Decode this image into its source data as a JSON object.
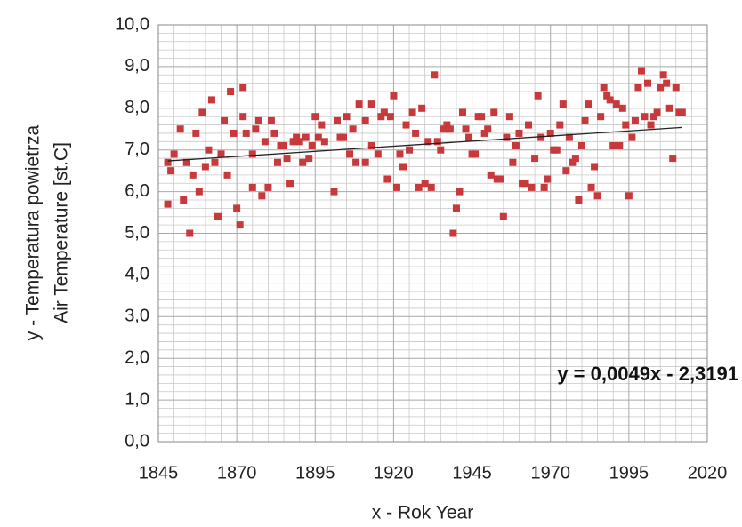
{
  "chart_data": {
    "type": "scatter",
    "x_label": "x - Rok Year",
    "y_label": [
      "y - Temperatura powietrza",
      "Air Temperature [st.C]"
    ],
    "xlim": [
      1845,
      2020
    ],
    "xticks": [
      1845,
      1870,
      1895,
      1920,
      1945,
      1970,
      1995,
      2020
    ],
    "ylim": [
      0,
      10
    ],
    "yticks": [
      {
        "value": 0,
        "label": "0,0"
      },
      {
        "value": 1,
        "label": "1,0"
      },
      {
        "value": 2,
        "label": "2,0"
      },
      {
        "value": 3,
        "label": "3,0"
      },
      {
        "value": 4,
        "label": "4,0"
      },
      {
        "value": 5,
        "label": "5,0"
      },
      {
        "value": 6,
        "label": "6,0"
      },
      {
        "value": 7,
        "label": "7,0"
      },
      {
        "value": 8,
        "label": "8,0"
      },
      {
        "value": 9,
        "label": "9,0"
      },
      {
        "value": 10,
        "label": "10,0"
      }
    ],
    "grid": true,
    "minor_grid": true,
    "color": "#c8393c",
    "x": [
      1848,
      1848,
      1849,
      1850,
      1852,
      1853,
      1854,
      1855,
      1856,
      1857,
      1858,
      1859,
      1860,
      1861,
      1862,
      1863,
      1864,
      1865,
      1866,
      1867,
      1868,
      1869,
      1870,
      1871,
      1872,
      1872,
      1873,
      1875,
      1875,
      1876,
      1877,
      1878,
      1879,
      1880,
      1881,
      1882,
      1883,
      1884,
      1885,
      1886,
      1887,
      1888,
      1889,
      1890,
      1891,
      1892,
      1893,
      1894,
      1895,
      1896,
      1897,
      1898,
      1901,
      1902,
      1903,
      1904,
      1905,
      1906,
      1907,
      1908,
      1909,
      1911,
      1911,
      1913,
      1913,
      1915,
      1916,
      1917,
      1918,
      1919,
      1920,
      1921,
      1922,
      1923,
      1924,
      1925,
      1926,
      1927,
      1928,
      1929,
      1930,
      1931,
      1932,
      1933,
      1934,
      1935,
      1936,
      1937,
      1938,
      1939,
      1940,
      1941,
      1942,
      1943,
      1944,
      1945,
      1946,
      1947,
      1948,
      1949,
      1950,
      1951,
      1952,
      1953,
      1954,
      1955,
      1956,
      1957,
      1958,
      1959,
      1960,
      1961,
      1962,
      1963,
      1964,
      1965,
      1966,
      1967,
      1968,
      1969,
      1970,
      1971,
      1972,
      1973,
      1974,
      1975,
      1976,
      1977,
      1978,
      1979,
      1980,
      1981,
      1982,
      1983,
      1984,
      1985,
      1986,
      1987,
      1988,
      1989,
      1990,
      1991,
      1992,
      1993,
      1994,
      1995,
      1996,
      1997,
      1998,
      1999,
      2000,
      2001,
      2002,
      2003,
      2004,
      2005,
      2006,
      2007,
      2008,
      2009,
      2010,
      2011,
      2012
    ],
    "values": [
      6.7,
      5.7,
      6.5,
      6.9,
      7.5,
      5.8,
      6.7,
      5.0,
      6.4,
      7.4,
      6.0,
      7.9,
      6.6,
      7.0,
      8.2,
      6.7,
      5.4,
      6.9,
      7.7,
      6.4,
      8.4,
      7.4,
      5.6,
      5.2,
      8.5,
      7.8,
      7.4,
      6.1,
      6.9,
      7.5,
      7.7,
      5.9,
      7.2,
      6.1,
      7.7,
      7.4,
      6.7,
      7.1,
      7.1,
      6.8,
      6.2,
      7.2,
      7.3,
      7.2,
      6.7,
      7.3,
      6.8,
      7.1,
      7.8,
      7.3,
      7.6,
      7.2,
      6.0,
      7.7,
      7.3,
      7.3,
      7.8,
      6.9,
      7.5,
      6.7,
      8.1,
      6.7,
      7.7,
      8.1,
      7.1,
      6.9,
      7.8,
      7.9,
      6.3,
      7.8,
      8.3,
      6.1,
      6.9,
      6.6,
      7.6,
      7.0,
      7.9,
      7.4,
      6.1,
      8.0,
      6.2,
      7.2,
      6.1,
      8.8,
      7.2,
      7.0,
      7.5,
      7.6,
      7.5,
      5.0,
      5.6,
      6.0,
      7.9,
      7.5,
      7.3,
      6.9,
      6.9,
      7.8,
      7.8,
      7.4,
      7.5,
      6.4,
      7.9,
      6.3,
      6.3,
      5.4,
      7.3,
      7.8,
      6.7,
      7.1,
      7.4,
      6.2,
      6.2,
      7.6,
      6.1,
      6.8,
      8.3,
      7.3,
      6.1,
      6.3,
      7.4,
      7.0,
      7.0,
      7.6,
      8.1,
      6.5,
      7.3,
      6.7,
      6.8,
      5.8,
      7.1,
      7.7,
      8.1,
      6.1,
      6.6,
      5.9,
      7.8,
      8.5,
      8.3,
      8.2,
      7.1,
      8.1,
      7.1,
      8.0,
      7.6,
      5.9,
      7.3,
      7.7,
      8.5,
      8.9,
      7.8,
      8.6,
      7.6,
      7.8,
      7.9,
      8.5,
      8.8,
      8.6,
      8.0,
      6.8,
      8.5,
      7.9,
      7.9
    ],
    "trendline": {
      "slope": 0.0049,
      "intercept": -2.3191,
      "label": "y = 0,0049x - 2,3191"
    }
  }
}
